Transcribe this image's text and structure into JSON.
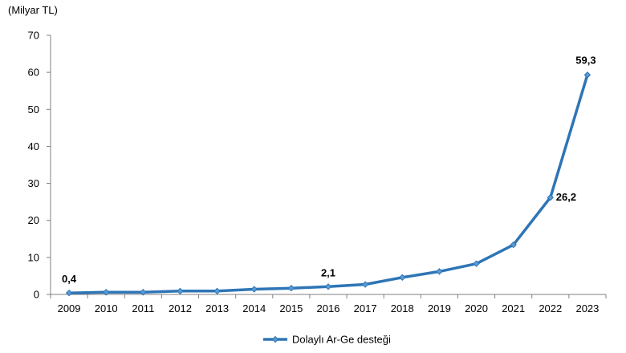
{
  "chart_data": {
    "type": "line",
    "title": "",
    "xlabel": "",
    "ylabel": "(Milyar TL)",
    "ylim": [
      0,
      70
    ],
    "yticks": [
      0,
      10,
      20,
      30,
      40,
      50,
      60,
      70
    ],
    "grid": false,
    "legend_position": "bottom-center",
    "categories": [
      "2009",
      "2010",
      "2011",
      "2012",
      "2013",
      "2014",
      "2015",
      "2016",
      "2017",
      "2018",
      "2019",
      "2020",
      "2021",
      "2022",
      "2023"
    ],
    "series": [
      {
        "name": "Dolaylı Ar-Ge desteği",
        "color": "#2e75b6",
        "values": [
          0.4,
          0.6,
          0.6,
          0.9,
          0.9,
          1.4,
          1.7,
          2.1,
          2.7,
          4.6,
          6.2,
          8.3,
          13.4,
          26.2,
          59.3
        ]
      }
    ],
    "data_labels": [
      {
        "category": "2009",
        "text": "0,4"
      },
      {
        "category": "2016",
        "text": "2,1"
      },
      {
        "category": "2022",
        "text": "26,2"
      },
      {
        "category": "2023",
        "text": "59,3"
      }
    ]
  }
}
